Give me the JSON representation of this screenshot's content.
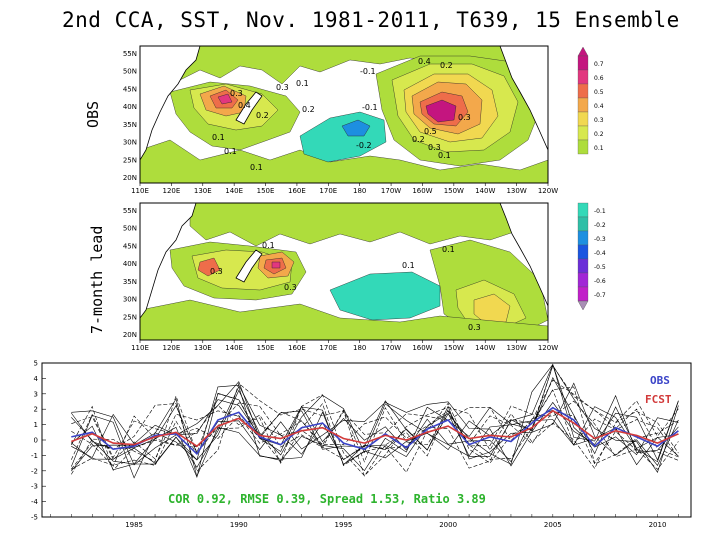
{
  "title": "2nd CCA, SST, Nov. 1981-2011, T639, 15 Ensemble",
  "row_labels": {
    "top": "OBS",
    "bottom": "7-month lead"
  },
  "colors": {
    "positive": [
      "#aedd3c",
      "#d7e84e",
      "#f1d850",
      "#f3a84b",
      "#ee6d4a",
      "#e2377f",
      "#c4157f"
    ],
    "negative": [
      "#33d9b8",
      "#2fbfa7",
      "#1d8fe0",
      "#1a55e0",
      "#6b2ed8",
      "#a126d6",
      "#c11fc9"
    ],
    "obs_line": "#3b44c8",
    "fcst_line": "#d23a3a",
    "stats_text": "#2db32d"
  },
  "chart_data": [
    {
      "type": "heatmap",
      "name": "OBS",
      "x_ticks": [
        "110E",
        "120E",
        "130E",
        "140E",
        "150E",
        "160E",
        "170E",
        "180",
        "170W",
        "160W",
        "150W",
        "140W",
        "130W",
        "120W"
      ],
      "y_ticks": [
        "55N",
        "50N",
        "45N",
        "40N",
        "35N",
        "30N",
        "25N",
        "20N"
      ],
      "contour_labels": [
        "0.4",
        "0.2",
        "0.1",
        "0.1",
        "0.3",
        "0.2",
        "0.4",
        "0.2",
        "-0.1",
        "-0.1",
        "-0.2",
        "0.3",
        "0.2",
        "0.3",
        "0.1",
        "0.1",
        "0.1",
        "0.5",
        "0.3"
      ],
      "colorbar_labels": [
        "0.7",
        "0.6",
        "0.5",
        "0.4",
        "0.3",
        "0.2",
        "0.1"
      ]
    },
    {
      "type": "heatmap",
      "name": "7-month lead",
      "x_ticks": [
        "110E",
        "120E",
        "130E",
        "140E",
        "150E",
        "160E",
        "170E",
        "180",
        "170W",
        "160W",
        "150W",
        "140W",
        "130W",
        "120W"
      ],
      "y_ticks": [
        "55N",
        "50N",
        "45N",
        "40N",
        "35N",
        "30N",
        "25N",
        "20N"
      ],
      "contour_labels": [
        "0.1",
        "0.3",
        "0.1",
        "0.3",
        "0.1",
        "0.3"
      ],
      "colorbar_labels": [
        "-0.1",
        "-0.2",
        "-0.3",
        "-0.4",
        "-0.5",
        "-0.6",
        "-0.7"
      ]
    },
    {
      "type": "line",
      "name": "time series",
      "x": [
        1982,
        1983,
        1984,
        1985,
        1986,
        1987,
        1988,
        1989,
        1990,
        1991,
        1992,
        1993,
        1994,
        1995,
        1996,
        1997,
        1998,
        1999,
        2000,
        2001,
        2002,
        2003,
        2004,
        2005,
        2006,
        2007,
        2008,
        2009,
        2010,
        2011
      ],
      "x_ticks": [
        "1985",
        "1990",
        "1995",
        "2000",
        "2005",
        "2010"
      ],
      "y_ticks": [
        "5",
        "4",
        "3",
        "2",
        "1",
        "0",
        "-1",
        "-2",
        "-3",
        "-4",
        "-5"
      ],
      "ylim": [
        -5,
        5
      ],
      "series": [
        {
          "name": "OBS",
          "values": [
            0.2,
            0.5,
            -0.6,
            -0.4,
            0.3,
            0.4,
            -0.9,
            1.3,
            1.8,
            0.2,
            -0.3,
            0.8,
            1.1,
            -0.2,
            -0.6,
            0.4,
            -0.5,
            0.7,
            1.3,
            -0.3,
            0.2,
            -0.1,
            1.1,
            2.1,
            1.3,
            -0.4,
            0.8,
            0.2,
            -0.4,
            0.6
          ]
        },
        {
          "name": "FCST",
          "values": [
            -0.1,
            0.4,
            -0.2,
            -0.3,
            0.2,
            0.5,
            -0.4,
            0.9,
            1.4,
            0.3,
            0.1,
            0.6,
            0.8,
            0.1,
            -0.2,
            0.3,
            0.0,
            0.5,
            0.9,
            0.1,
            0.3,
            0.2,
            0.8,
            1.9,
            1.1,
            0.1,
            0.6,
            0.3,
            -0.2,
            0.4
          ]
        }
      ],
      "stats": "COR 0.92, RMSE 0.39, Spread 1.53, Ratio 3.89"
    }
  ]
}
